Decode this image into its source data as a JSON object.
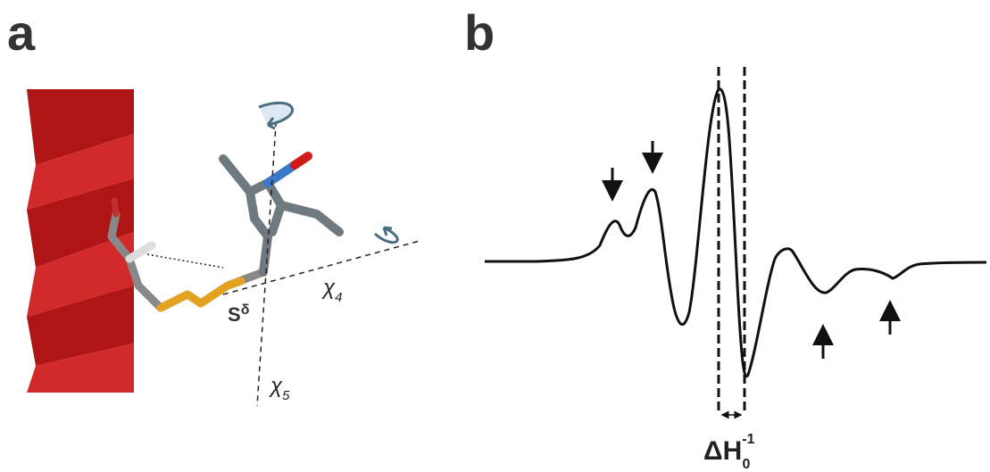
{
  "panels": [
    {
      "label": "a",
      "rotation_marks": {
        "chi4": {
          "symbol": "χ",
          "subscript": "4"
        },
        "chi5": {
          "symbol": "χ",
          "subscript": "5"
        }
      },
      "atom_label": {
        "symbol": "S",
        "superscript": "δ"
      }
    },
    {
      "label": "b",
      "linewidth_label": {
        "symbol": "ΔH",
        "subscript": "0",
        "superscript": "-1"
      }
    }
  ]
}
